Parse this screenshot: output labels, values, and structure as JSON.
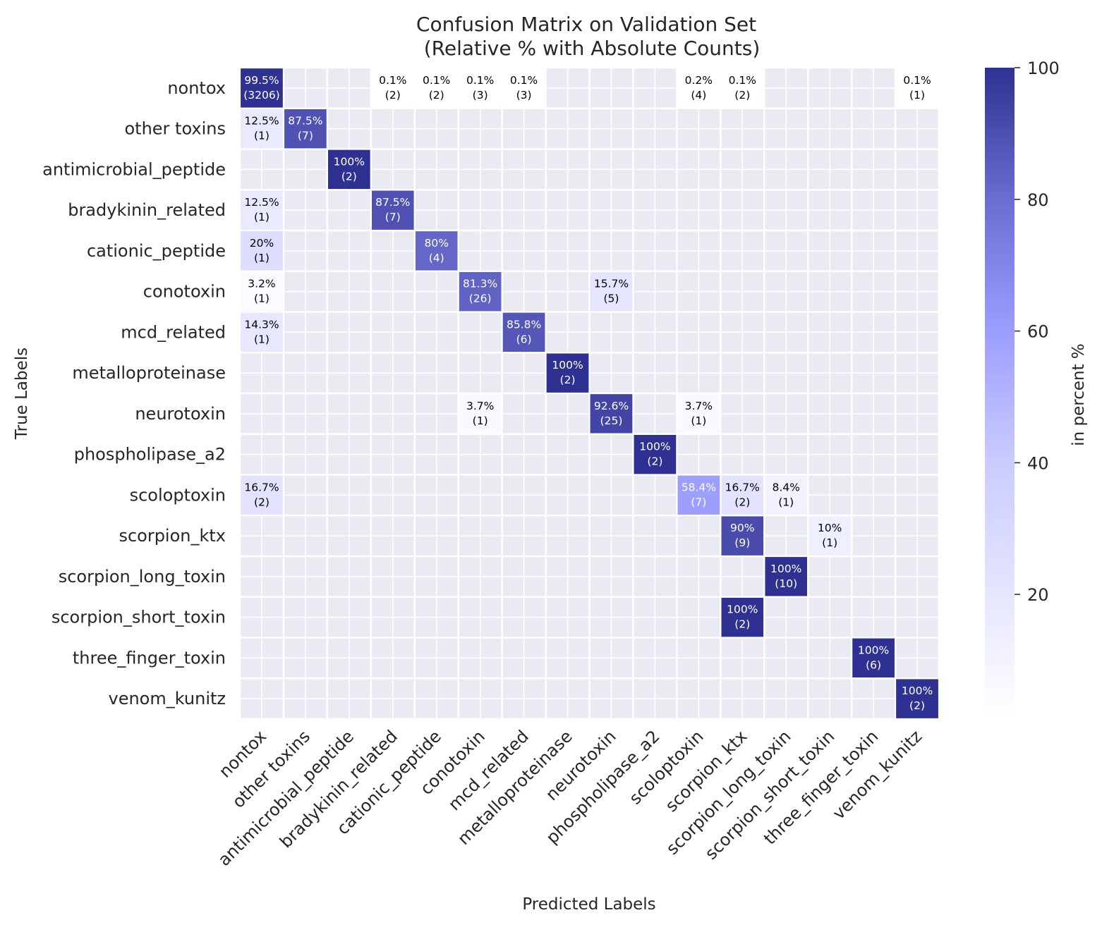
{
  "chart_data": {
    "type": "heatmap",
    "title": "Confusion Matrix on Validation Set",
    "subtitle": "(Relative % with Absolute Counts)",
    "xlabel": "Predicted Labels",
    "ylabel": "True Labels",
    "colorbar_label": "in percent %",
    "colorbar_ticks": [
      20,
      40,
      60,
      80,
      100
    ],
    "color_range": [
      0,
      100
    ],
    "colors": {
      "low": "#ffffff",
      "mid": "#9a9cff",
      "high": "#2e3191",
      "empty": "#eaeaf2"
    },
    "labels": [
      "nontox",
      "other toxins",
      "antimicrobial_peptide",
      "bradykinin_related",
      "cationic_peptide",
      "conotoxin",
      "mcd_related",
      "metalloproteinase",
      "neurotoxin",
      "phospholipase_a2",
      "scoloptoxin",
      "scorpion_ktx",
      "scorpion_long_toxin",
      "scorpion_short_toxin",
      "three_finger_toxin",
      "venom_kunitz"
    ],
    "cells": [
      {
        "row": 0,
        "col": 0,
        "pct": 99.5,
        "pct_label": "99.5%",
        "count_label": "(3206)"
      },
      {
        "row": 0,
        "col": 3,
        "pct": 0.1,
        "pct_label": "0.1%",
        "count_label": "(2)"
      },
      {
        "row": 0,
        "col": 4,
        "pct": 0.1,
        "pct_label": "0.1%",
        "count_label": "(2)"
      },
      {
        "row": 0,
        "col": 5,
        "pct": 0.1,
        "pct_label": "0.1%",
        "count_label": "(3)"
      },
      {
        "row": 0,
        "col": 6,
        "pct": 0.1,
        "pct_label": "0.1%",
        "count_label": "(3)"
      },
      {
        "row": 0,
        "col": 10,
        "pct": 0.2,
        "pct_label": "0.2%",
        "count_label": "(4)"
      },
      {
        "row": 0,
        "col": 11,
        "pct": 0.1,
        "pct_label": "0.1%",
        "count_label": "(2)"
      },
      {
        "row": 0,
        "col": 15,
        "pct": 0.1,
        "pct_label": "0.1%",
        "count_label": "(1)"
      },
      {
        "row": 1,
        "col": 0,
        "pct": 12.5,
        "pct_label": "12.5%",
        "count_label": "(1)"
      },
      {
        "row": 1,
        "col": 1,
        "pct": 87.5,
        "pct_label": "87.5%",
        "count_label": "(7)"
      },
      {
        "row": 2,
        "col": 2,
        "pct": 100,
        "pct_label": "100%",
        "count_label": "(2)"
      },
      {
        "row": 3,
        "col": 0,
        "pct": 12.5,
        "pct_label": "12.5%",
        "count_label": "(1)"
      },
      {
        "row": 3,
        "col": 3,
        "pct": 87.5,
        "pct_label": "87.5%",
        "count_label": "(7)"
      },
      {
        "row": 4,
        "col": 0,
        "pct": 20,
        "pct_label": "20%",
        "count_label": "(1)"
      },
      {
        "row": 4,
        "col": 4,
        "pct": 80,
        "pct_label": "80%",
        "count_label": "(4)"
      },
      {
        "row": 5,
        "col": 0,
        "pct": 3.2,
        "pct_label": "3.2%",
        "count_label": "(1)"
      },
      {
        "row": 5,
        "col": 5,
        "pct": 81.3,
        "pct_label": "81.3%",
        "count_label": "(26)"
      },
      {
        "row": 5,
        "col": 8,
        "pct": 15.7,
        "pct_label": "15.7%",
        "count_label": "(5)"
      },
      {
        "row": 6,
        "col": 0,
        "pct": 14.3,
        "pct_label": "14.3%",
        "count_label": "(1)"
      },
      {
        "row": 6,
        "col": 6,
        "pct": 85.8,
        "pct_label": "85.8%",
        "count_label": "(6)"
      },
      {
        "row": 7,
        "col": 7,
        "pct": 100,
        "pct_label": "100%",
        "count_label": "(2)"
      },
      {
        "row": 8,
        "col": 5,
        "pct": 3.7,
        "pct_label": "3.7%",
        "count_label": "(1)"
      },
      {
        "row": 8,
        "col": 8,
        "pct": 92.6,
        "pct_label": "92.6%",
        "count_label": "(25)"
      },
      {
        "row": 8,
        "col": 10,
        "pct": 3.7,
        "pct_label": "3.7%",
        "count_label": "(1)"
      },
      {
        "row": 9,
        "col": 9,
        "pct": 100,
        "pct_label": "100%",
        "count_label": "(2)"
      },
      {
        "row": 10,
        "col": 0,
        "pct": 16.7,
        "pct_label": "16.7%",
        "count_label": "(2)"
      },
      {
        "row": 10,
        "col": 10,
        "pct": 58.4,
        "pct_label": "58.4%",
        "count_label": "(7)"
      },
      {
        "row": 10,
        "col": 11,
        "pct": 16.7,
        "pct_label": "16.7%",
        "count_label": "(2)"
      },
      {
        "row": 10,
        "col": 12,
        "pct": 8.4,
        "pct_label": "8.4%",
        "count_label": "(1)"
      },
      {
        "row": 11,
        "col": 11,
        "pct": 90,
        "pct_label": "90%",
        "count_label": "(9)"
      },
      {
        "row": 11,
        "col": 13,
        "pct": 10,
        "pct_label": "10%",
        "count_label": "(1)"
      },
      {
        "row": 12,
        "col": 12,
        "pct": 100,
        "pct_label": "100%",
        "count_label": "(10)"
      },
      {
        "row": 13,
        "col": 11,
        "pct": 100,
        "pct_label": "100%",
        "count_label": "(2)"
      },
      {
        "row": 14,
        "col": 14,
        "pct": 100,
        "pct_label": "100%",
        "count_label": "(6)"
      },
      {
        "row": 15,
        "col": 15,
        "pct": 100,
        "pct_label": "100%",
        "count_label": "(2)"
      }
    ]
  }
}
